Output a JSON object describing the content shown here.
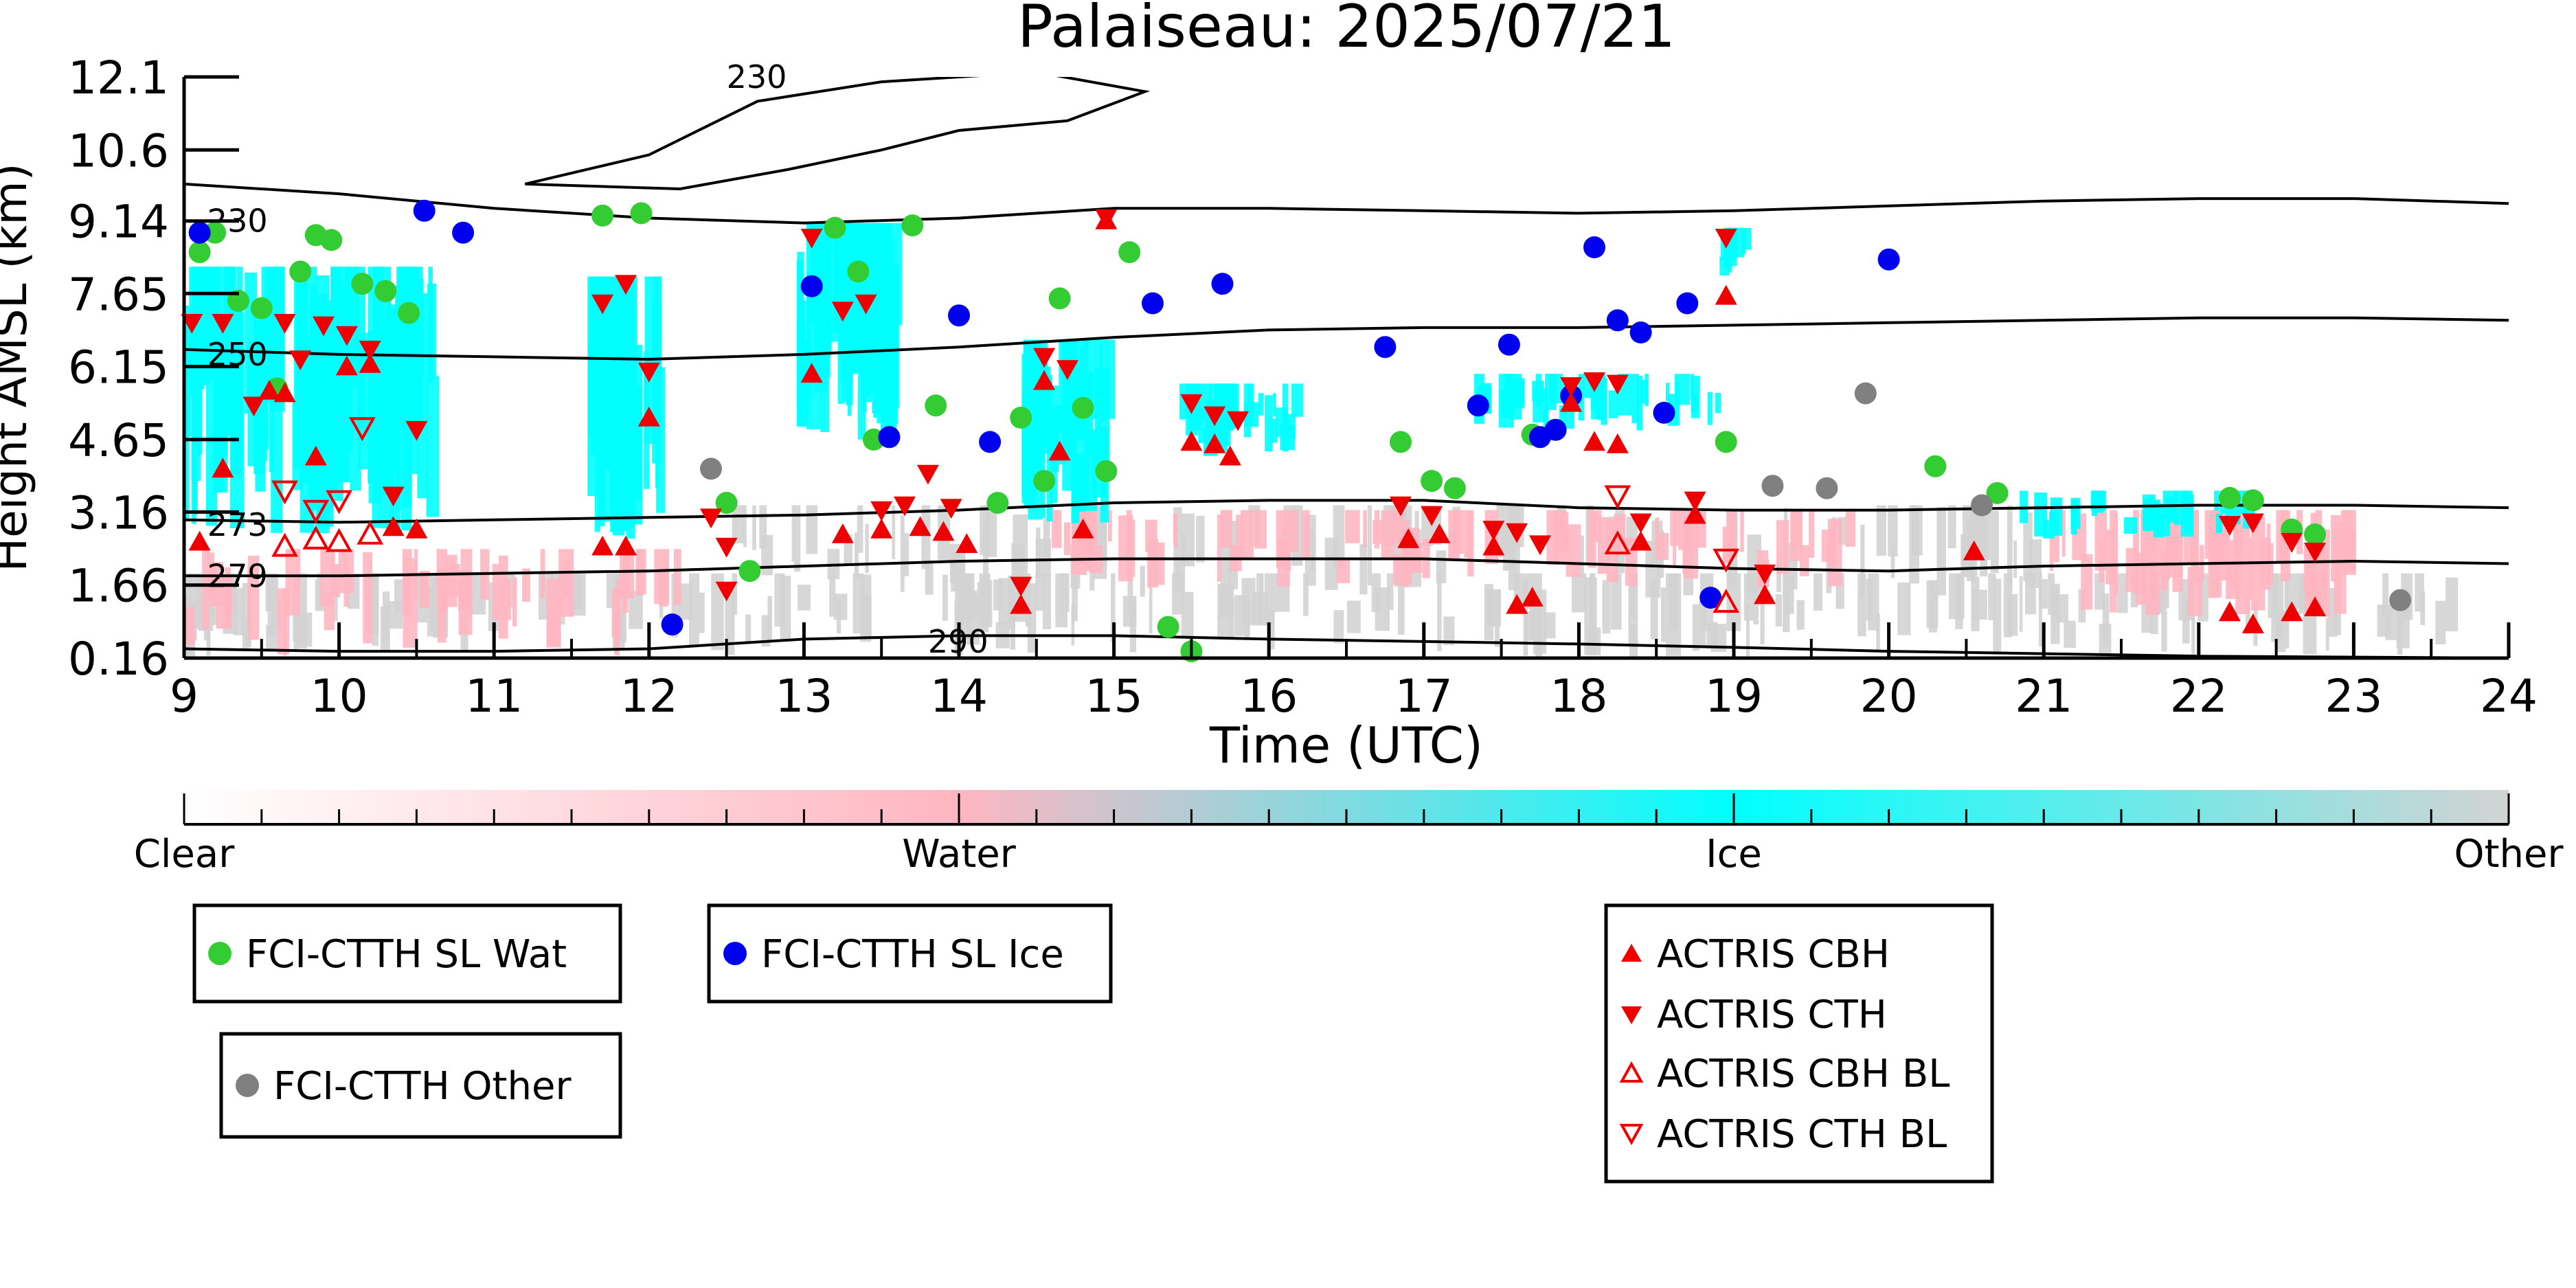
{
  "chart_data": {
    "type": "scatter",
    "title": "Palaiseau: 2025/07/21",
    "xlabel": "Time (UTC)",
    "ylabel": "Height AMSL (km)",
    "xlim": [
      9,
      24
    ],
    "ylim": [
      0.16,
      12.1
    ],
    "x_ticks": [
      9,
      10,
      11,
      12,
      13,
      14,
      15,
      16,
      17,
      18,
      19,
      20,
      21,
      22,
      23,
      24
    ],
    "y_ticks": [
      0.16,
      1.66,
      3.16,
      4.65,
      6.15,
      7.65,
      9.14,
      10.6,
      12.1
    ],
    "y_tick_labels": [
      "0.16",
      "1.66",
      "3.16",
      "4.65",
      "6.15",
      "7.65",
      "9.14",
      "10.6",
      "12.1"
    ],
    "grid": false,
    "colorbar": {
      "labels": [
        "Clear",
        "Water",
        "Ice",
        "Other"
      ],
      "colors": [
        "#ffffff",
        "#ffb6c1",
        "#00ffff",
        "#d3d3d3"
      ]
    },
    "classification_colors": {
      "water": "#ffb6c1",
      "ice": "#00ffff",
      "other": "#d3d3d3"
    },
    "isotherms": [
      {
        "label": "230",
        "label_at": [
          9.15,
          9.14
        ],
        "points": [
          [
            9,
            9.9
          ],
          [
            10,
            9.7
          ],
          [
            11,
            9.4
          ],
          [
            12,
            9.2
          ],
          [
            13,
            9.1
          ],
          [
            14,
            9.2
          ],
          [
            15,
            9.4
          ],
          [
            16,
            9.4
          ],
          [
            17,
            9.35
          ],
          [
            18,
            9.3
          ],
          [
            19,
            9.35
          ],
          [
            20,
            9.45
          ],
          [
            21,
            9.55
          ],
          [
            22,
            9.6
          ],
          [
            23,
            9.6
          ],
          [
            24,
            9.5
          ]
        ]
      },
      {
        "label": "250",
        "label_at": [
          9.15,
          6.4
        ],
        "points": [
          [
            9,
            6.5
          ],
          [
            10,
            6.4
          ],
          [
            11,
            6.35
          ],
          [
            12,
            6.3
          ],
          [
            13,
            6.4
          ],
          [
            14,
            6.55
          ],
          [
            15,
            6.75
          ],
          [
            16,
            6.9
          ],
          [
            17,
            6.95
          ],
          [
            18,
            6.95
          ],
          [
            19,
            7.0
          ],
          [
            20,
            7.05
          ],
          [
            21,
            7.1
          ],
          [
            22,
            7.15
          ],
          [
            23,
            7.15
          ],
          [
            24,
            7.1
          ]
        ]
      },
      {
        "label": "273",
        "label_at": [
          9.15,
          2.9
        ],
        "points": [
          [
            9,
            3.0
          ],
          [
            10,
            2.95
          ],
          [
            11,
            3.0
          ],
          [
            12,
            3.05
          ],
          [
            13,
            3.1
          ],
          [
            14,
            3.2
          ],
          [
            15,
            3.35
          ],
          [
            16,
            3.4
          ],
          [
            17,
            3.4
          ],
          [
            18,
            3.25
          ],
          [
            19,
            3.2
          ],
          [
            20,
            3.2
          ],
          [
            21,
            3.25
          ],
          [
            22,
            3.3
          ],
          [
            23,
            3.3
          ],
          [
            24,
            3.25
          ]
        ]
      },
      {
        "label": "279",
        "label_at": [
          9.15,
          1.85
        ],
        "points": [
          [
            9,
            1.85
          ],
          [
            10,
            1.85
          ],
          [
            11,
            1.9
          ],
          [
            12,
            1.95
          ],
          [
            13,
            2.05
          ],
          [
            14,
            2.15
          ],
          [
            15,
            2.2
          ],
          [
            16,
            2.2
          ],
          [
            17,
            2.2
          ],
          [
            18,
            2.1
          ],
          [
            19,
            2.0
          ],
          [
            20,
            1.95
          ],
          [
            21,
            2.05
          ],
          [
            22,
            2.1
          ],
          [
            23,
            2.15
          ],
          [
            24,
            2.1
          ]
        ]
      },
      {
        "label": "290",
        "label_at": [
          13.8,
          0.5
        ],
        "points": [
          [
            9,
            0.35
          ],
          [
            10,
            0.3
          ],
          [
            11,
            0.3
          ],
          [
            12,
            0.35
          ],
          [
            13,
            0.55
          ],
          [
            14,
            0.62
          ],
          [
            15,
            0.62
          ],
          [
            16,
            0.55
          ],
          [
            17,
            0.5
          ],
          [
            18,
            0.45
          ],
          [
            19,
            0.38
          ],
          [
            20,
            0.3
          ],
          [
            21,
            0.25
          ],
          [
            22,
            0.2
          ],
          [
            23,
            0.18
          ],
          [
            24,
            0.16
          ]
        ]
      },
      {
        "label": "230",
        "label_at": [
          12.5,
          12.1
        ],
        "points": [
          [
            11.2,
            9.9
          ],
          [
            12,
            10.5
          ],
          [
            12.7,
            11.6
          ],
          [
            13.5,
            12.0
          ],
          [
            14.5,
            12.2
          ],
          [
            15.2,
            11.8
          ],
          [
            14.7,
            11.2
          ],
          [
            14.0,
            11.0
          ],
          [
            13.5,
            10.6
          ],
          [
            12.9,
            10.2
          ],
          [
            12.2,
            9.8
          ],
          [
            11.2,
            9.9
          ]
        ]
      }
    ],
    "series": [
      {
        "name": "FCI-CTTH SL Wat",
        "marker": "circle",
        "color": "#33cc33",
        "points": [
          [
            9.1,
            8.5
          ],
          [
            9.2,
            8.9
          ],
          [
            9.35,
            7.5
          ],
          [
            9.5,
            7.35
          ],
          [
            9.6,
            5.7
          ],
          [
            9.75,
            8.1
          ],
          [
            9.85,
            8.85
          ],
          [
            9.95,
            8.75
          ],
          [
            10.15,
            7.85
          ],
          [
            10.3,
            7.7
          ],
          [
            10.45,
            7.25
          ],
          [
            11.7,
            9.25
          ],
          [
            11.95,
            9.3
          ],
          [
            12.5,
            3.35
          ],
          [
            12.65,
            1.95
          ],
          [
            13.2,
            9.0
          ],
          [
            13.35,
            8.1
          ],
          [
            13.45,
            4.65
          ],
          [
            13.7,
            9.05
          ],
          [
            13.85,
            5.35
          ],
          [
            14.25,
            3.35
          ],
          [
            14.4,
            5.1
          ],
          [
            14.55,
            3.8
          ],
          [
            14.65,
            7.55
          ],
          [
            14.8,
            5.3
          ],
          [
            14.95,
            4.0
          ],
          [
            15.1,
            8.5
          ],
          [
            15.35,
            0.8
          ],
          [
            15.5,
            0.3
          ],
          [
            16.85,
            4.6
          ],
          [
            17.05,
            3.8
          ],
          [
            17.2,
            3.65
          ],
          [
            17.7,
            4.75
          ],
          [
            18.95,
            4.6
          ],
          [
            20.3,
            4.1
          ],
          [
            20.7,
            3.55
          ],
          [
            22.2,
            3.45
          ],
          [
            22.35,
            3.4
          ],
          [
            22.6,
            2.8
          ],
          [
            22.75,
            2.7
          ]
        ]
      },
      {
        "name": "FCI-CTTH SL Ice",
        "marker": "circle",
        "color": "#0000ee",
        "points": [
          [
            9.1,
            8.9
          ],
          [
            10.55,
            9.35
          ],
          [
            10.8,
            8.9
          ],
          [
            12.15,
            0.85
          ],
          [
            13.05,
            7.8
          ],
          [
            13.55,
            4.7
          ],
          [
            14.0,
            7.2
          ],
          [
            14.2,
            4.6
          ],
          [
            15.25,
            7.45
          ],
          [
            15.7,
            7.85
          ],
          [
            16.75,
            6.55
          ],
          [
            17.35,
            5.35
          ],
          [
            17.55,
            6.6
          ],
          [
            17.75,
            4.7
          ],
          [
            17.85,
            4.85
          ],
          [
            17.95,
            5.55
          ],
          [
            18.1,
            8.6
          ],
          [
            18.25,
            7.1
          ],
          [
            18.4,
            6.85
          ],
          [
            18.55,
            5.2
          ],
          [
            18.7,
            7.45
          ],
          [
            18.85,
            1.4
          ],
          [
            20.0,
            8.35
          ]
        ]
      },
      {
        "name": "FCI-CTTH Other",
        "marker": "circle",
        "color": "#808080",
        "points": [
          [
            12.4,
            4.05
          ],
          [
            19.25,
            3.7
          ],
          [
            19.6,
            3.65
          ],
          [
            19.85,
            5.6
          ],
          [
            20.6,
            3.3
          ],
          [
            23.3,
            1.35
          ]
        ]
      },
      {
        "name": "ACTRIS CBH",
        "marker": "triangle-up",
        "color": "#ee0000",
        "points": [
          [
            9.1,
            2.55
          ],
          [
            9.25,
            4.05
          ],
          [
            9.55,
            5.65
          ],
          [
            9.65,
            5.6
          ],
          [
            9.85,
            4.3
          ],
          [
            10.05,
            6.15
          ],
          [
            10.2,
            6.2
          ],
          [
            10.35,
            2.85
          ],
          [
            10.5,
            2.8
          ],
          [
            11.7,
            2.45
          ],
          [
            11.85,
            2.45
          ],
          [
            12.0,
            5.1
          ],
          [
            13.05,
            6.0
          ],
          [
            13.25,
            2.7
          ],
          [
            13.5,
            2.8
          ],
          [
            13.75,
            2.85
          ],
          [
            13.9,
            2.75
          ],
          [
            14.05,
            2.5
          ],
          [
            14.4,
            1.25
          ],
          [
            14.55,
            5.85
          ],
          [
            14.65,
            4.4
          ],
          [
            14.8,
            2.8
          ],
          [
            14.95,
            9.15
          ],
          [
            15.5,
            4.6
          ],
          [
            15.65,
            4.55
          ],
          [
            15.75,
            4.3
          ],
          [
            16.9,
            2.6
          ],
          [
            17.1,
            2.7
          ],
          [
            17.45,
            2.45
          ],
          [
            17.6,
            1.25
          ],
          [
            17.7,
            1.4
          ],
          [
            17.95,
            5.4
          ],
          [
            18.1,
            4.6
          ],
          [
            18.25,
            4.55
          ],
          [
            18.4,
            2.55
          ],
          [
            18.75,
            3.1
          ],
          [
            18.95,
            7.6
          ],
          [
            19.2,
            1.45
          ],
          [
            20.55,
            2.35
          ],
          [
            22.2,
            1.1
          ],
          [
            22.35,
            0.85
          ],
          [
            22.6,
            1.1
          ],
          [
            22.75,
            1.2
          ]
        ]
      },
      {
        "name": "ACTRIS CTH",
        "marker": "triangle-down",
        "color": "#ee0000",
        "points": [
          [
            9.05,
            7.05
          ],
          [
            9.25,
            7.05
          ],
          [
            9.45,
            5.35
          ],
          [
            9.65,
            7.05
          ],
          [
            9.75,
            6.3
          ],
          [
            9.9,
            7.0
          ],
          [
            10.05,
            6.8
          ],
          [
            10.2,
            6.5
          ],
          [
            10.35,
            3.5
          ],
          [
            10.5,
            4.85
          ],
          [
            11.7,
            7.45
          ],
          [
            11.85,
            7.85
          ],
          [
            12.0,
            6.05
          ],
          [
            12.4,
            3.05
          ],
          [
            12.5,
            2.45
          ],
          [
            12.5,
            1.55
          ],
          [
            13.05,
            8.8
          ],
          [
            13.25,
            7.3
          ],
          [
            13.4,
            7.45
          ],
          [
            13.5,
            3.2
          ],
          [
            13.65,
            3.3
          ],
          [
            13.8,
            3.95
          ],
          [
            13.95,
            3.25
          ],
          [
            14.4,
            1.65
          ],
          [
            14.55,
            6.35
          ],
          [
            14.7,
            6.1
          ],
          [
            14.95,
            9.2
          ],
          [
            15.5,
            5.4
          ],
          [
            15.65,
            5.15
          ],
          [
            15.8,
            5.05
          ],
          [
            16.85,
            3.3
          ],
          [
            17.05,
            3.1
          ],
          [
            17.45,
            2.8
          ],
          [
            17.6,
            2.75
          ],
          [
            17.75,
            2.5
          ],
          [
            17.95,
            5.75
          ],
          [
            18.1,
            5.85
          ],
          [
            18.25,
            5.8
          ],
          [
            18.4,
            2.95
          ],
          [
            18.75,
            3.4
          ],
          [
            18.95,
            8.8
          ],
          [
            19.2,
            1.9
          ],
          [
            22.2,
            2.9
          ],
          [
            22.35,
            2.95
          ],
          [
            22.6,
            2.55
          ],
          [
            22.75,
            2.35
          ]
        ]
      },
      {
        "name": "ACTRIS CBH BL",
        "marker": "triangle-up-open",
        "color": "#ee0000",
        "points": [
          [
            9.65,
            2.45
          ],
          [
            9.85,
            2.6
          ],
          [
            10.0,
            2.55
          ],
          [
            10.2,
            2.7
          ],
          [
            18.25,
            2.5
          ],
          [
            18.95,
            1.3
          ]
        ]
      },
      {
        "name": "ACTRIS CTH BL",
        "marker": "triangle-down-open",
        "color": "#ee0000",
        "points": [
          [
            9.65,
            3.6
          ],
          [
            9.85,
            3.2
          ],
          [
            10.0,
            3.4
          ],
          [
            10.15,
            4.9
          ],
          [
            18.25,
            3.5
          ],
          [
            18.95,
            2.2
          ]
        ]
      }
    ]
  }
}
